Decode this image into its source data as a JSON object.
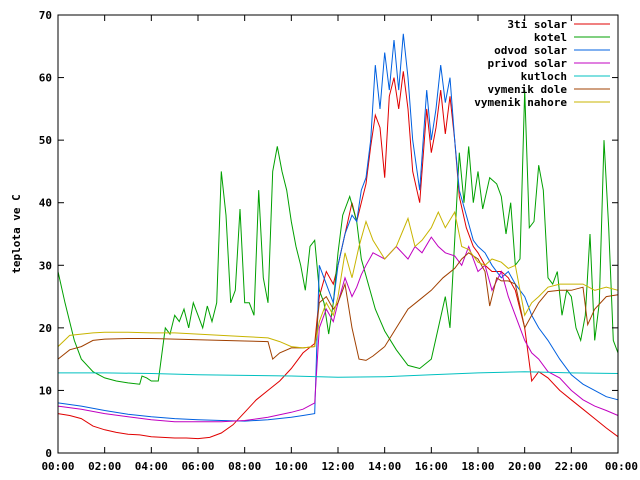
{
  "chart_data": {
    "type": "line",
    "title": "",
    "xlabel": "",
    "ylabel": "teplota ve C",
    "xlim": [
      0,
      24
    ],
    "ylim": [
      0,
      70
    ],
    "xticks": [
      0,
      2,
      4,
      6,
      8,
      10,
      12,
      14,
      16,
      18,
      20,
      22,
      24
    ],
    "xtick_labels": [
      "00:00",
      "02:00",
      "04:00",
      "06:00",
      "08:00",
      "10:00",
      "12:00",
      "14:00",
      "16:00",
      "18:00",
      "20:00",
      "22:00",
      "00:00"
    ],
    "yticks": [
      0,
      10,
      20,
      30,
      40,
      50,
      60,
      70
    ],
    "ytick_labels": [
      "0",
      "10",
      "20",
      "30",
      "40",
      "50",
      "60",
      "70"
    ],
    "grid": false,
    "legend_position": "top-right",
    "series": [
      {
        "name": "3ti solar",
        "color": "#e00000",
        "x": [
          0,
          0.5,
          1,
          1.5,
          2,
          2.5,
          3,
          3.5,
          4,
          4.5,
          5,
          5.5,
          6,
          6.5,
          7,
          7.5,
          8,
          8.5,
          9,
          9.5,
          10,
          10.5,
          11,
          11.2,
          11.5,
          11.8,
          12,
          12.3,
          12.6,
          12.8,
          13,
          13.2,
          13.4,
          13.6,
          13.8,
          14,
          14.2,
          14.4,
          14.6,
          14.8,
          15,
          15.2,
          15.5,
          15.8,
          16,
          16.2,
          16.4,
          16.6,
          16.8,
          17,
          17.2,
          17.5,
          17.8,
          18,
          18.3,
          18.6,
          19,
          19.3,
          19.6,
          20,
          20.3,
          20.6,
          21,
          21.5,
          22,
          22.5,
          23,
          23.5,
          24
        ],
        "y": [
          6.3,
          6,
          5.5,
          4.3,
          3.7,
          3.3,
          3,
          2.9,
          2.6,
          2.5,
          2.4,
          2.4,
          2.3,
          2.5,
          3.2,
          4.5,
          6.5,
          8.5,
          10,
          11.5,
          13.5,
          16,
          17.5,
          25,
          29,
          27,
          30,
          35,
          40,
          37,
          40,
          43,
          49,
          54,
          52,
          44,
          57,
          60,
          55,
          61,
          55,
          45,
          40,
          55,
          48,
          52,
          58,
          51,
          57,
          50,
          41,
          36,
          33,
          32,
          30,
          29,
          29,
          28,
          26,
          20,
          11.5,
          13,
          12,
          10,
          8.5,
          7,
          5.5,
          4,
          2.6
        ]
      },
      {
        "name": "kotel",
        "color": "#00a000",
        "x": [
          0,
          0.3,
          0.7,
          1,
          1.5,
          2,
          2.5,
          3,
          3.5,
          3.6,
          3.8,
          4,
          4.3,
          4.6,
          4.8,
          5,
          5.2,
          5.4,
          5.6,
          5.8,
          6,
          6.2,
          6.4,
          6.6,
          6.8,
          7,
          7.2,
          7.4,
          7.6,
          7.8,
          8,
          8.2,
          8.4,
          8.6,
          8.8,
          9,
          9.2,
          9.4,
          9.6,
          9.8,
          10,
          10.2,
          10.4,
          10.6,
          10.8,
          11,
          11.2,
          11.4,
          11.6,
          11.8,
          12,
          12.2,
          12.5,
          12.8,
          13,
          13.3,
          13.6,
          14,
          14.5,
          15,
          15.5,
          16,
          16.3,
          16.6,
          16.8,
          17,
          17.2,
          17.4,
          17.6,
          17.8,
          18,
          18.2,
          18.5,
          18.8,
          19,
          19.2,
          19.4,
          19.6,
          19.8,
          20,
          20.2,
          20.4,
          20.6,
          20.8,
          21,
          21.2,
          21.4,
          21.6,
          21.8,
          22,
          22.2,
          22.4,
          22.6,
          22.8,
          23,
          23.2,
          23.4,
          23.6,
          23.8,
          24
        ],
        "y": [
          29,
          24,
          18,
          15,
          13,
          12,
          11.5,
          11.2,
          11,
          12.3,
          12,
          11.5,
          11.5,
          20,
          19,
          22,
          21,
          23,
          20,
          24,
          22,
          20,
          23.5,
          21,
          24,
          45,
          38,
          24,
          26,
          39,
          24,
          24,
          22,
          42,
          28,
          24,
          45,
          49,
          45,
          42,
          37,
          33,
          30,
          26,
          33,
          34,
          26,
          24,
          19,
          24,
          32,
          38,
          41,
          37,
          31,
          27,
          23,
          19.5,
          16.5,
          14,
          13.5,
          15,
          20,
          25,
          20,
          34,
          48,
          40,
          49,
          40,
          45,
          39,
          44,
          43,
          41,
          35,
          40,
          30,
          31,
          58,
          36,
          37,
          46,
          42,
          28,
          27,
          29,
          22,
          26,
          25,
          20,
          18,
          22,
          35,
          18,
          24,
          50,
          36,
          18,
          16
        ]
      },
      {
        "name": "odvod solar",
        "color": "#0060e0",
        "x": [
          0,
          1,
          2,
          3,
          4,
          5,
          6,
          7,
          8,
          9,
          10,
          10.5,
          11,
          11.2,
          11.5,
          11.8,
          12,
          12.3,
          12.6,
          12.8,
          13,
          13.2,
          13.4,
          13.6,
          13.8,
          14,
          14.2,
          14.4,
          14.6,
          14.8,
          15,
          15.2,
          15.5,
          15.8,
          16,
          16.2,
          16.4,
          16.6,
          16.8,
          17,
          17.2,
          17.5,
          17.8,
          18,
          18.3,
          18.6,
          19,
          19.3,
          19.6,
          20,
          20.3,
          20.6,
          21,
          21.5,
          22,
          22.5,
          23,
          23.5,
          24
        ],
        "y": [
          8,
          7.5,
          6.8,
          6.2,
          5.8,
          5.5,
          5.3,
          5.2,
          5.1,
          5.3,
          5.7,
          6,
          6.3,
          30,
          27,
          24,
          30,
          35,
          38,
          37,
          42,
          44,
          50,
          62,
          55,
          64,
          58,
          66,
          58,
          67,
          60,
          50,
          42,
          58,
          50,
          55,
          62,
          56,
          60,
          50,
          42,
          38,
          34,
          33,
          32,
          30,
          28,
          29,
          27,
          25,
          22,
          20,
          18,
          15,
          12.5,
          11,
          10,
          9,
          8.5
        ]
      },
      {
        "name": "privod solar",
        "color": "#c000c0",
        "x": [
          0,
          1,
          2,
          3,
          4,
          5,
          6,
          7,
          8,
          9,
          10,
          10.5,
          11,
          11.2,
          11.5,
          11.8,
          12,
          12.3,
          12.6,
          12.8,
          13,
          13.2,
          13.5,
          14,
          14.5,
          15,
          15.3,
          15.6,
          16,
          16.3,
          16.6,
          17,
          17.3,
          17.6,
          18,
          18.3,
          18.6,
          19,
          19.3,
          19.6,
          20,
          20.3,
          20.6,
          21,
          21.5,
          22,
          22.5,
          23,
          23.5,
          24
        ],
        "y": [
          7.5,
          7,
          6.3,
          5.8,
          5.3,
          5,
          5,
          5,
          5.2,
          5.7,
          6.5,
          7,
          8,
          20,
          23,
          21,
          24,
          28,
          25,
          26.5,
          28.5,
          30,
          32,
          31,
          33,
          31,
          33,
          32,
          34.5,
          33,
          32,
          31.5,
          30,
          33,
          29,
          30,
          26,
          29,
          25,
          22,
          18,
          16,
          15,
          13,
          12,
          10,
          8.5,
          7.5,
          6.8,
          6
        ]
      },
      {
        "name": "kutloch",
        "color": "#00c0c0",
        "x": [
          0,
          2,
          4,
          6,
          8,
          10,
          12,
          14,
          16,
          18,
          20,
          22,
          24
        ],
        "y": [
          12.8,
          12.8,
          12.7,
          12.5,
          12.4,
          12.3,
          12.1,
          12.2,
          12.5,
          12.8,
          13,
          12.8,
          12.7
        ]
      },
      {
        "name": "vymenik dole",
        "color": "#a04000",
        "x": [
          0,
          0.5,
          1,
          1.5,
          2,
          3,
          4,
          5,
          6,
          7,
          8,
          9,
          9.2,
          9.5,
          10,
          10.5,
          11,
          11.2,
          11.5,
          11.8,
          12,
          12.3,
          12.6,
          12.9,
          13.2,
          13.5,
          14,
          14.5,
          15,
          15.5,
          16,
          16.5,
          17,
          17.3,
          17.6,
          18,
          18.3,
          18.5,
          18.8,
          19,
          19.3,
          19.6,
          20,
          20.3,
          20.6,
          21,
          21.5,
          22,
          22.5,
          22.7,
          23,
          23.5,
          24
        ],
        "y": [
          15,
          16.5,
          17,
          18,
          18.2,
          18.3,
          18.3,
          18.2,
          18.1,
          18.0,
          17.9,
          17.8,
          15,
          16,
          16.8,
          16.8,
          17,
          24,
          25,
          23,
          24,
          27,
          20,
          15,
          14.8,
          15.5,
          17,
          20,
          23,
          24.5,
          26,
          28,
          29.5,
          31,
          32,
          31,
          29,
          23.5,
          28,
          27.5,
          27.5,
          27,
          20,
          22,
          24,
          25.8,
          26,
          26,
          26.5,
          20.5,
          23,
          25,
          25.3
        ]
      },
      {
        "name": "vymenik nahore",
        "color": "#c8b400",
        "x": [
          0,
          0.5,
          1,
          1.5,
          2,
          3,
          4,
          5,
          6,
          7,
          8,
          9,
          9.5,
          10,
          10.5,
          11,
          11.2,
          11.5,
          11.8,
          12,
          12.3,
          12.6,
          12.9,
          13.2,
          13.5,
          14,
          14.5,
          15,
          15.3,
          15.6,
          16,
          16.3,
          16.6,
          17,
          17.3,
          17.6,
          18,
          18.3,
          18.6,
          19,
          19.3,
          19.6,
          20,
          20.3,
          20.6,
          21,
          21.5,
          22,
          22.5,
          23,
          23.5,
          24
        ],
        "y": [
          17,
          18.8,
          19,
          19.2,
          19.3,
          19.3,
          19.2,
          19.2,
          19,
          18.8,
          18.6,
          18.4,
          17.8,
          17,
          16.8,
          17,
          21,
          24,
          22,
          25,
          32,
          28,
          33,
          37,
          34,
          31,
          33,
          37.5,
          33,
          34,
          36,
          38.5,
          36,
          38.5,
          33,
          32.5,
          30.5,
          30,
          31,
          30.5,
          29.5,
          30,
          22,
          24,
          25,
          26.5,
          27,
          27,
          27,
          26,
          26.5,
          26
        ]
      }
    ]
  }
}
